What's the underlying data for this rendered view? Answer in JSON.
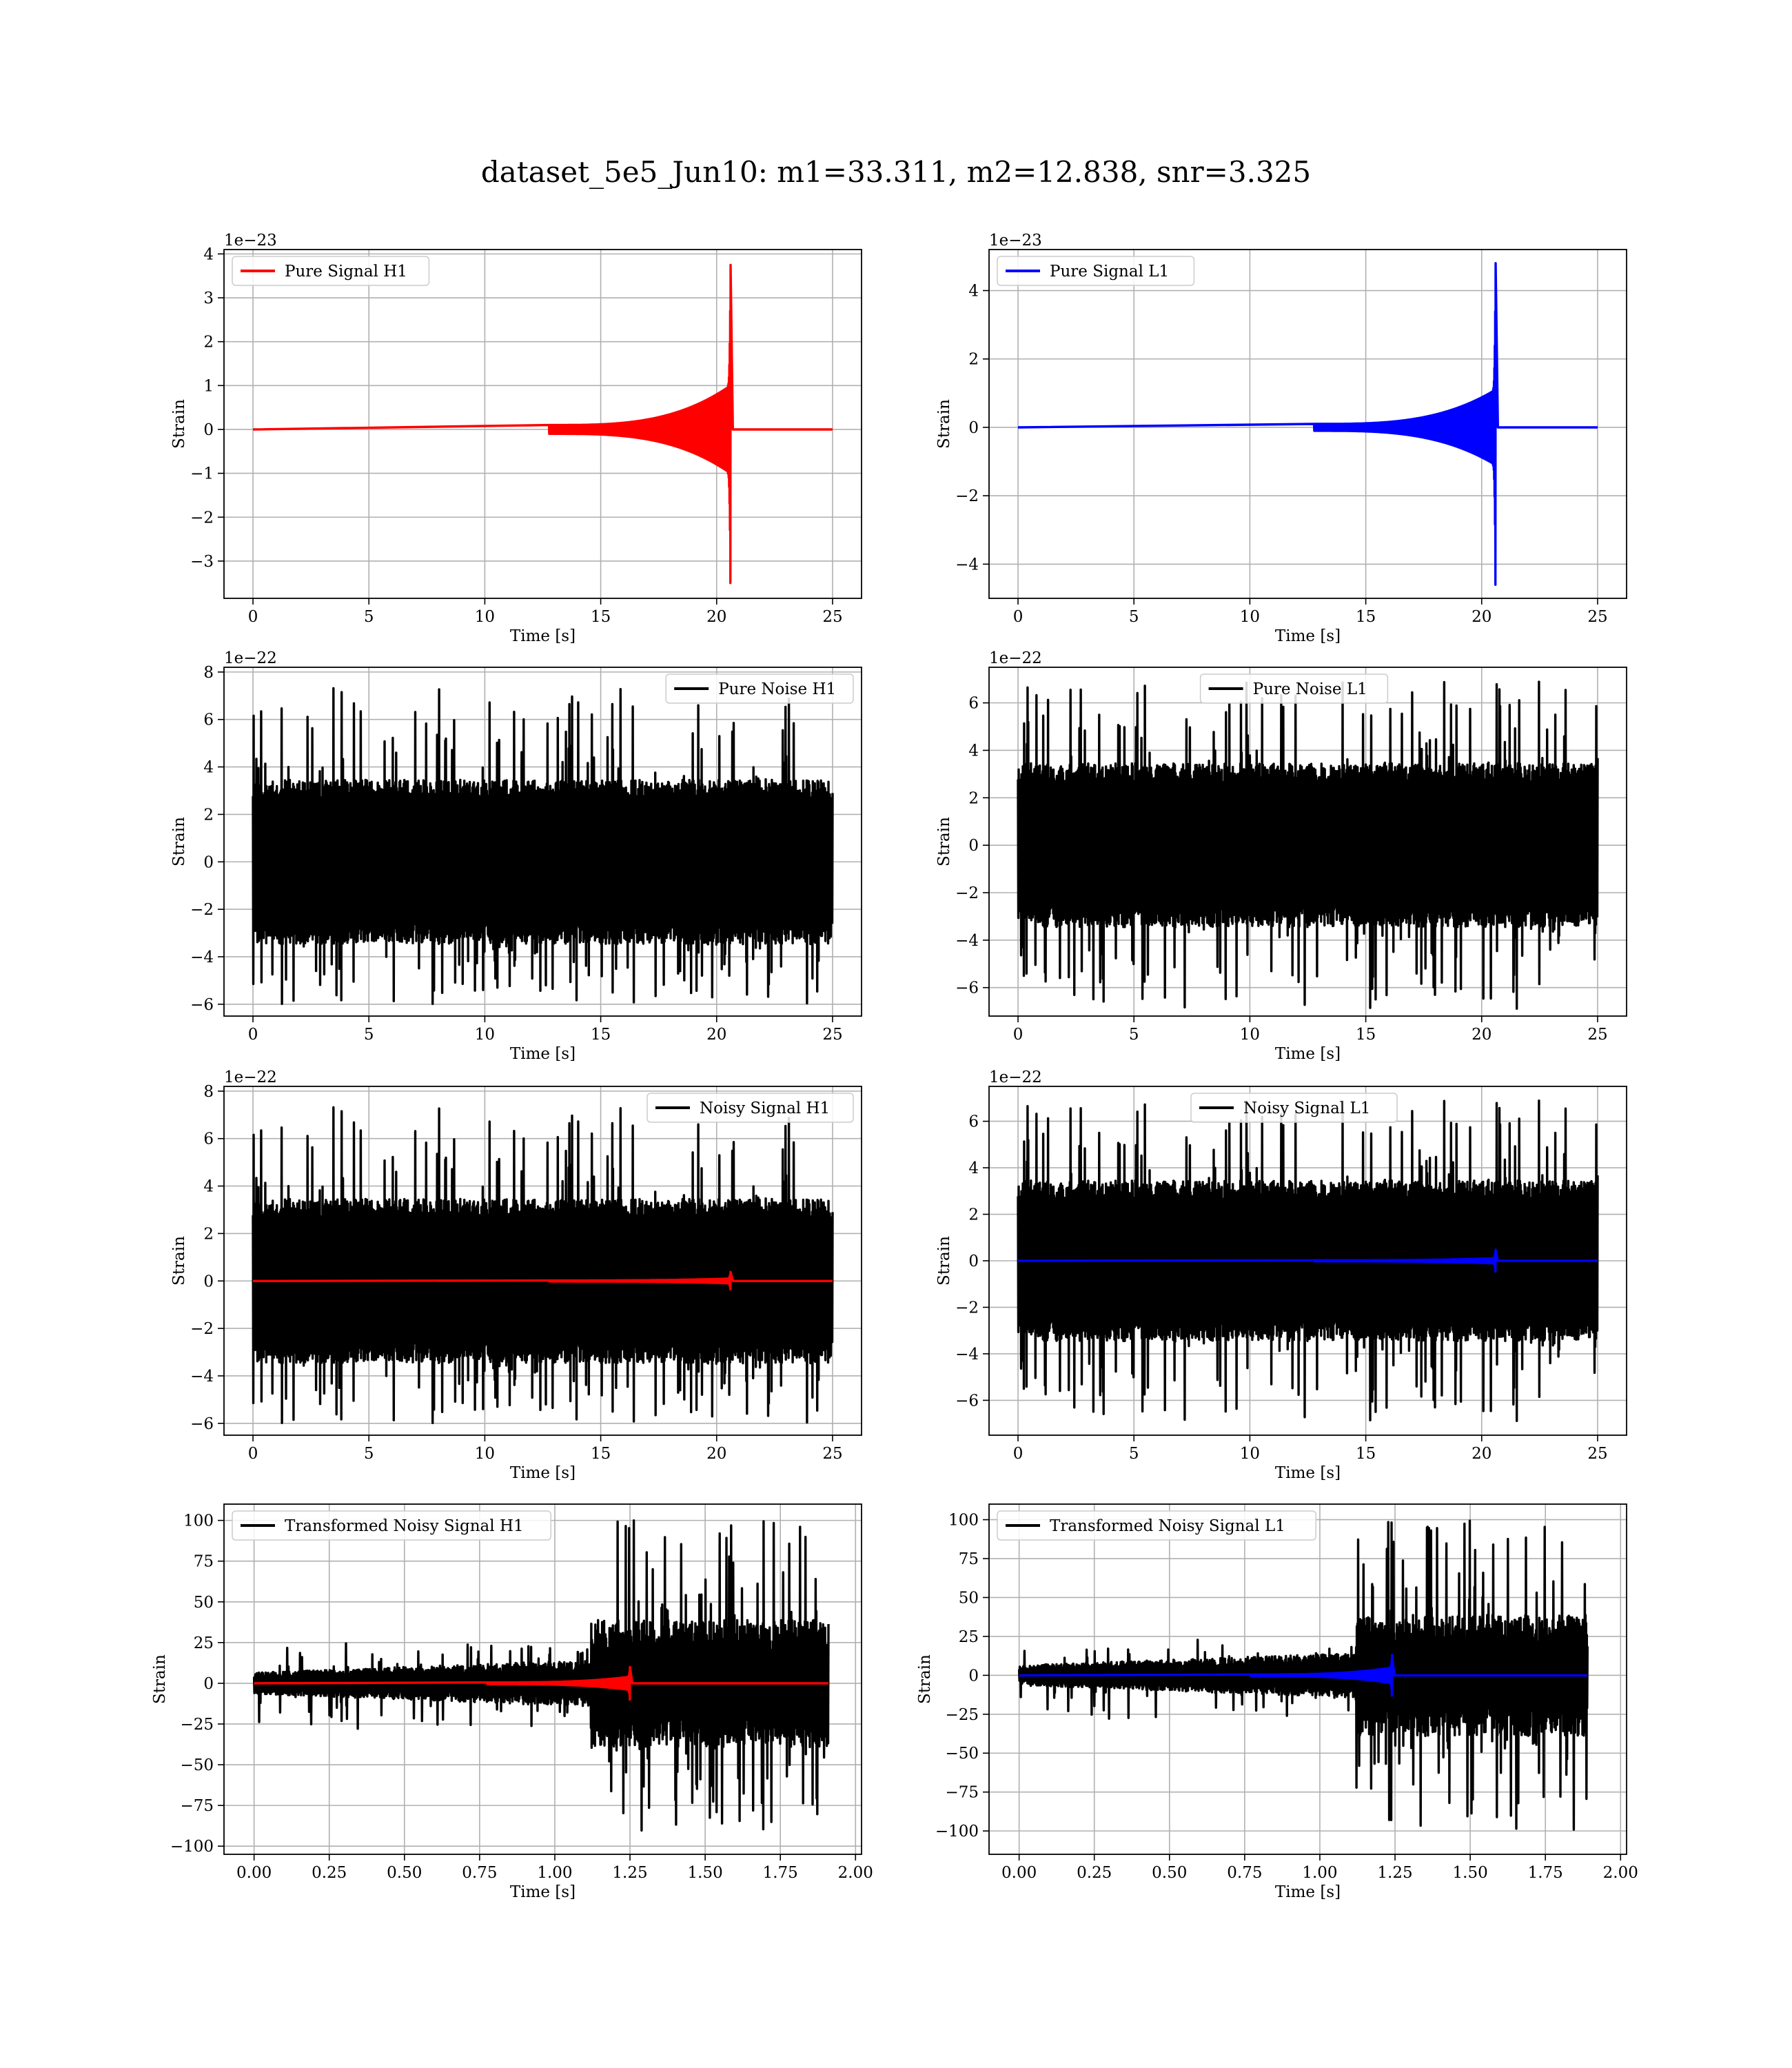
{
  "title": "dataset_5e5_Jun10: m1=33.311, m2=12.838, snr=3.325",
  "colors": {
    "h1_signal": "#ff0000",
    "l1_signal": "#0000ff",
    "noise": "#000000",
    "grid": "#b0b0b0"
  },
  "chart_data": [
    {
      "id": "pure-signal-h1",
      "type": "line",
      "xlabel": "Time [s]",
      "ylabel": "Strain",
      "offset_text": "1e−23",
      "xlim": [
        -1.25,
        26.25
      ],
      "ylim": [
        -3.85,
        4.1
      ],
      "xticks": [
        0,
        5,
        10,
        15,
        20,
        25
      ],
      "xtick_labels": [
        "0",
        "5",
        "10",
        "15",
        "20",
        "25"
      ],
      "yticks": [
        -3,
        -2,
        -1,
        0,
        1,
        2,
        3,
        4
      ],
      "ytick_labels": [
        "−3",
        "−2",
        "−1",
        "0",
        "1",
        "2",
        "3",
        "4"
      ],
      "legend": "upper left",
      "grid": true,
      "series": [
        {
          "name": "Pure Signal H1",
          "color": "#ff0000",
          "kind": "chirp",
          "x_start": 0,
          "x_end": 25,
          "x_merger": 20.6,
          "y_peak_pos": 3.75,
          "y_peak_neg": -3.5,
          "y_plateau": 1.0,
          "y_pre": 0.1
        }
      ]
    },
    {
      "id": "pure-signal-l1",
      "type": "line",
      "xlabel": "Time [s]",
      "ylabel": "Strain",
      "offset_text": "1e−23",
      "xlim": [
        -1.25,
        26.25
      ],
      "ylim": [
        -5.0,
        5.2
      ],
      "xticks": [
        0,
        5,
        10,
        15,
        20,
        25
      ],
      "xtick_labels": [
        "0",
        "5",
        "10",
        "15",
        "20",
        "25"
      ],
      "yticks": [
        -4,
        -2,
        0,
        2,
        4
      ],
      "ytick_labels": [
        "−4",
        "−2",
        "0",
        "2",
        "4"
      ],
      "legend": "upper left",
      "grid": true,
      "series": [
        {
          "name": "Pure Signal L1",
          "color": "#0000ff",
          "kind": "chirp",
          "x_start": 0,
          "x_end": 25,
          "x_merger": 20.6,
          "y_peak_pos": 4.8,
          "y_peak_neg": -4.6,
          "y_plateau": 1.1,
          "y_pre": 0.1
        }
      ]
    },
    {
      "id": "pure-noise-h1",
      "type": "line",
      "xlabel": "Time [s]",
      "ylabel": "Strain",
      "offset_text": "1e−22",
      "xlim": [
        -1.25,
        26.25
      ],
      "ylim": [
        -6.5,
        8.2
      ],
      "xticks": [
        0,
        5,
        10,
        15,
        20,
        25
      ],
      "xtick_labels": [
        "0",
        "5",
        "10",
        "15",
        "20",
        "25"
      ],
      "yticks": [
        -6,
        -4,
        -2,
        0,
        2,
        4,
        6,
        8
      ],
      "ytick_labels": [
        "−6",
        "−4",
        "−2",
        "0",
        "2",
        "4",
        "6",
        "8"
      ],
      "legend": "upper right",
      "grid": true,
      "series": [
        {
          "name": "Pure Noise H1",
          "color": "#000000",
          "kind": "noise",
          "x_start": 0,
          "x_end": 25,
          "body": 3.0,
          "spike_max": 7.4,
          "spike_min": -6.0,
          "seed": 11
        }
      ]
    },
    {
      "id": "pure-noise-l1",
      "type": "line",
      "xlabel": "Time [s]",
      "ylabel": "Strain",
      "offset_text": "1e−22",
      "xlim": [
        -1.25,
        26.25
      ],
      "ylim": [
        -7.2,
        7.5
      ],
      "xticks": [
        0,
        5,
        10,
        15,
        20,
        25
      ],
      "xtick_labels": [
        "0",
        "5",
        "10",
        "15",
        "20",
        "25"
      ],
      "yticks": [
        -6,
        -4,
        -2,
        0,
        2,
        4,
        6
      ],
      "ytick_labels": [
        "−6",
        "−4",
        "−2",
        "0",
        "2",
        "4",
        "6"
      ],
      "legend": "upper center",
      "grid": true,
      "series": [
        {
          "name": "Pure Noise L1",
          "color": "#000000",
          "kind": "noise",
          "x_start": 0,
          "x_end": 25,
          "body": 3.0,
          "spike_max": 6.9,
          "spike_min": -6.9,
          "seed": 23
        }
      ]
    },
    {
      "id": "noisy-signal-h1",
      "type": "line",
      "xlabel": "Time [s]",
      "ylabel": "Strain",
      "offset_text": "1e−22",
      "xlim": [
        -1.25,
        26.25
      ],
      "ylim": [
        -6.5,
        8.2
      ],
      "xticks": [
        0,
        5,
        10,
        15,
        20,
        25
      ],
      "xtick_labels": [
        "0",
        "5",
        "10",
        "15",
        "20",
        "25"
      ],
      "yticks": [
        -6,
        -4,
        -2,
        0,
        2,
        4,
        6,
        8
      ],
      "ytick_labels": [
        "−6",
        "−4",
        "−2",
        "0",
        "2",
        "4",
        "6",
        "8"
      ],
      "legend": "upper right",
      "grid": true,
      "series": [
        {
          "name": "Noisy Signal H1",
          "color": "#000000",
          "kind": "noise",
          "x_start": 0,
          "x_end": 25,
          "body": 3.0,
          "spike_max": 7.4,
          "spike_min": -6.0,
          "seed": 11
        },
        {
          "name": "",
          "color": "#ff0000",
          "kind": "chirp",
          "x_start": 0,
          "x_end": 25,
          "x_merger": 20.6,
          "y_peak_pos": 0.38,
          "y_peak_neg": -0.35,
          "y_plateau": 0.1,
          "y_pre": 0.02
        }
      ]
    },
    {
      "id": "noisy-signal-l1",
      "type": "line",
      "xlabel": "Time [s]",
      "ylabel": "Strain",
      "offset_text": "1e−22",
      "xlim": [
        -1.25,
        26.25
      ],
      "ylim": [
        -7.5,
        7.5
      ],
      "xticks": [
        0,
        5,
        10,
        15,
        20,
        25
      ],
      "xtick_labels": [
        "0",
        "5",
        "10",
        "15",
        "20",
        "25"
      ],
      "yticks": [
        -6,
        -4,
        -2,
        0,
        2,
        4,
        6
      ],
      "ytick_labels": [
        "−6",
        "−4",
        "−2",
        "0",
        "2",
        "4",
        "6"
      ],
      "legend": "upper center",
      "grid": true,
      "series": [
        {
          "name": "Noisy Signal L1",
          "color": "#000000",
          "kind": "noise",
          "x_start": 0,
          "x_end": 25,
          "body": 3.0,
          "spike_max": 6.9,
          "spike_min": -6.9,
          "seed": 23
        },
        {
          "name": "",
          "color": "#0000ff",
          "kind": "chirp",
          "x_start": 0,
          "x_end": 25,
          "x_merger": 20.6,
          "y_peak_pos": 0.48,
          "y_peak_neg": -0.46,
          "y_plateau": 0.11,
          "y_pre": 0.02
        }
      ]
    },
    {
      "id": "transformed-h1",
      "type": "line",
      "xlabel": "Time [s]",
      "ylabel": "Strain",
      "offset_text": "",
      "xlim": [
        -0.1,
        2.02
      ],
      "ylim": [
        -105,
        110
      ],
      "xticks": [
        0,
        0.25,
        0.5,
        0.75,
        1.0,
        1.25,
        1.5,
        1.75,
        2.0
      ],
      "xtick_labels": [
        "0.00",
        "0.25",
        "0.50",
        "0.75",
        "1.00",
        "1.25",
        "1.50",
        "1.75",
        "2.00"
      ],
      "yticks": [
        -100,
        -75,
        -50,
        -25,
        0,
        25,
        50,
        75,
        100
      ],
      "ytick_labels": [
        "−100",
        "−75",
        "−50",
        "−25",
        "0",
        "25",
        "50",
        "75",
        "100"
      ],
      "legend": "upper left",
      "grid": true,
      "series": [
        {
          "name": "Transformed Noisy Signal H1",
          "color": "#000000",
          "kind": "transformed",
          "x_start": 0,
          "x_end": 1.91,
          "x_jump": 1.12,
          "body_pre": 5,
          "body_post": 30,
          "spike_max": 100,
          "spike_min": -95,
          "seed": 37
        },
        {
          "name": "",
          "color": "#ff0000",
          "kind": "chirp",
          "x_start": 0,
          "x_end": 1.91,
          "x_merger": 1.25,
          "y_peak_pos": 10,
          "y_peak_neg": -10,
          "y_plateau": 4,
          "y_pre": 0.5
        }
      ]
    },
    {
      "id": "transformed-l1",
      "type": "line",
      "xlabel": "Time [s]",
      "ylabel": "Strain",
      "offset_text": "",
      "xlim": [
        -0.1,
        2.02
      ],
      "ylim": [
        -115,
        110
      ],
      "xticks": [
        0,
        0.25,
        0.5,
        0.75,
        1.0,
        1.25,
        1.5,
        1.75,
        2.0
      ],
      "xtick_labels": [
        "0.00",
        "0.25",
        "0.50",
        "0.75",
        "1.00",
        "1.25",
        "1.50",
        "1.75",
        "2.00"
      ],
      "yticks": [
        -100,
        -75,
        -50,
        -25,
        0,
        25,
        50,
        75,
        100
      ],
      "ytick_labels": [
        "−100",
        "−75",
        "−50",
        "−25",
        "0",
        "25",
        "50",
        "75",
        "100"
      ],
      "legend": "upper left",
      "grid": true,
      "series": [
        {
          "name": "Transformed Noisy Signal L1",
          "color": "#000000",
          "kind": "transformed",
          "x_start": 0,
          "x_end": 1.89,
          "x_jump": 1.12,
          "body_pre": 5,
          "body_post": 30,
          "spike_max": 100,
          "spike_min": -100,
          "seed": 53
        },
        {
          "name": "",
          "color": "#0000ff",
          "kind": "chirp",
          "x_start": 0,
          "x_end": 1.89,
          "x_merger": 1.24,
          "y_peak_pos": 13,
          "y_peak_neg": -13,
          "y_plateau": 5,
          "y_pre": 0.5
        }
      ]
    }
  ]
}
